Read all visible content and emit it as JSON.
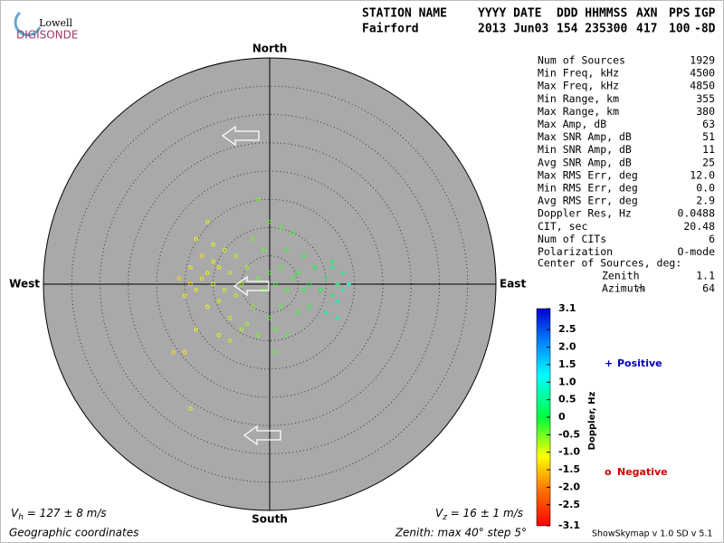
{
  "header": {
    "logo_top": "Lowell",
    "logo_bottom": "DIGISONDE",
    "labels": [
      "STATION NAME",
      "YYYY DATE",
      "DDD HHMMSS",
      "AXN",
      "PPS",
      "IGP"
    ],
    "values": [
      "Fairford",
      "2013 Jun03",
      "154 235300",
      "417",
      "100",
      "-8D"
    ]
  },
  "stats": {
    "rows": [
      [
        "Num of Sources",
        "1929"
      ],
      [
        "Min Freq, kHz",
        "4500"
      ],
      [
        "Max Freq, kHz",
        "4850"
      ],
      [
        "Min Range, km",
        "355"
      ],
      [
        "Max Range, km",
        "380"
      ],
      [
        "Max Amp, dB",
        "63"
      ],
      [
        "Max SNR Amp, dB",
        "51"
      ],
      [
        "Min SNR Amp, dB",
        "11"
      ],
      [
        "Avg SNR Amp, dB",
        "25"
      ],
      [
        "Max RMS Err, deg",
        "12.0"
      ],
      [
        "Min RMS Err, deg",
        "0.0"
      ],
      [
        "Avg RMS Err, deg",
        "2.9"
      ],
      [
        "Doppler Res, Hz",
        "0.0488"
      ],
      [
        "CIT, sec",
        "20.48"
      ],
      [
        "Num of CITs",
        "6"
      ],
      [
        "Polarization",
        "O-mode"
      ]
    ],
    "center_title": "Center of Sources, deg:",
    "center_rows": [
      [
        "Zenith",
        "1.1"
      ],
      [
        "Azimuth",
        "64"
      ]
    ]
  },
  "chart_data": {
    "type": "skymap",
    "directions": {
      "north": "North",
      "south": "South",
      "east": "East",
      "west": "West"
    },
    "zenith_max": 40,
    "zenith_step": 5,
    "series": [
      {
        "name": "Sources",
        "x": [
          -12,
          -11,
          -10,
          -9,
          -8,
          -13,
          -14,
          -15,
          -10,
          -9,
          -7,
          -6,
          -11,
          -12,
          -8,
          -7,
          -5,
          -9,
          -13,
          -15,
          -17,
          -14,
          -16,
          -13,
          -11,
          -10,
          -6,
          -4,
          -5,
          -3,
          -4,
          -7,
          -14,
          -2,
          -1,
          0,
          1,
          2,
          3,
          4,
          5,
          6,
          7,
          2,
          0,
          1,
          3,
          2,
          0,
          -2,
          4,
          5,
          8,
          9,
          10,
          11,
          12,
          13,
          11,
          -2,
          1,
          3,
          6,
          7,
          -1,
          -3,
          12,
          13,
          10,
          14,
          11,
          12
        ],
        "y": [
          1,
          2,
          0,
          3,
          -1,
          -1,
          0,
          -2,
          4,
          -3,
          2,
          -2,
          -4,
          5,
          6,
          -6,
          -8,
          -9,
          -8,
          -12,
          -12,
          3,
          1,
          8,
          11,
          7,
          5,
          3,
          0,
          -4,
          -7,
          -10,
          -22,
          1,
          -1,
          2,
          0,
          3,
          -1,
          1,
          2,
          -1,
          0,
          -4,
          -6,
          -8,
          6,
          10,
          11,
          15,
          9,
          -5,
          3,
          -1,
          1,
          -2,
          0,
          2,
          4,
          -9,
          -12,
          -9,
          5,
          -4,
          6,
          8,
          -3,
          -1,
          -5,
          0,
          3,
          -6
        ],
        "doppler": [
          -1.2,
          -1.1,
          -1.0,
          -1.1,
          -0.9,
          -1.2,
          -1.3,
          -1.2,
          -1.1,
          -1.0,
          -0.9,
          -0.8,
          -1.1,
          -1.2,
          -1.0,
          -0.9,
          -0.8,
          -1.0,
          -1.1,
          -1.2,
          -1.3,
          -1.2,
          -1.3,
          -1.1,
          -1.0,
          -1.0,
          -0.8,
          -0.7,
          -0.7,
          -0.6,
          -0.7,
          -0.9,
          -1.0,
          -0.5,
          -0.4,
          -0.4,
          -0.3,
          -0.3,
          -0.3,
          -0.2,
          -0.2,
          -0.1,
          -0.1,
          -0.3,
          -0.4,
          -0.4,
          -0.2,
          -0.3,
          -0.4,
          -0.5,
          -0.2,
          -0.2,
          0.0,
          0.0,
          0.1,
          0.2,
          0.2,
          0.3,
          0.2,
          -0.5,
          -0.4,
          -0.3,
          -0.1,
          -0.1,
          -0.4,
          -0.5,
          0.6,
          0.8,
          0.5,
          0.9,
          0.5,
          0.7
        ]
      }
    ],
    "colorbar": {
      "label": "Doppler, Hz",
      "clim": [
        -3.1,
        3.1
      ],
      "ticks": [
        3.1,
        2.5,
        {
          "value": 2,
          "label": "2.0"
        },
        1.5,
        {
          "value": 1,
          "label": "1.0"
        },
        0.5,
        0,
        -0.5,
        {
          "value": -1,
          "label": "-1.0"
        },
        -1.5,
        {
          "value": -2,
          "label": "-2.0"
        },
        -2.5,
        -3.1
      ]
    },
    "legend": {
      "positive_symbol": "+",
      "positive": "Positive",
      "negative_symbol": "o",
      "negative": "Negative"
    }
  },
  "footer": {
    "vh_symbol": "V",
    "vh_sub": "h",
    "vh_text": " = 127 ± 8 m/s",
    "vz_symbol": "V",
    "vz_sub": "z",
    "vz_text": " = 16 ± 1 m/s",
    "coords": "Geographic coordinates",
    "zenith": "Zenith: max 40°  step 5°",
    "version": "ShowSkymap v 1.0   SD v 5.1"
  }
}
